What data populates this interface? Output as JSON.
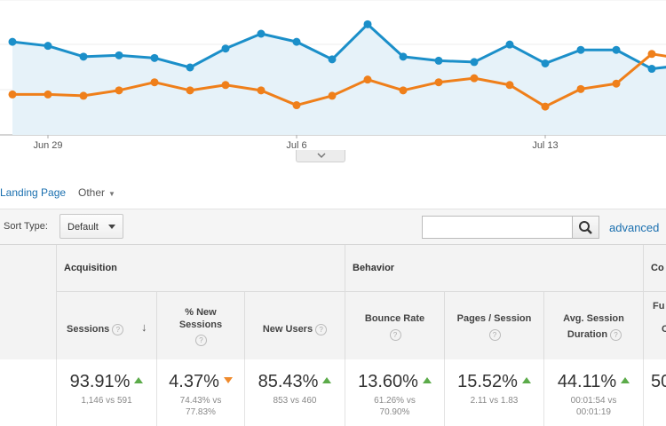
{
  "chart_data": {
    "type": "line",
    "x_ticks": [
      "Jun 29",
      "Jul 6",
      "Jul 13"
    ],
    "series": [
      {
        "color": "#1b8fc9",
        "values": [
          69,
          66,
          58,
          59,
          57,
          50,
          64,
          75,
          69,
          56,
          82,
          58,
          55,
          54,
          67,
          53,
          63,
          63,
          49,
          52,
          47
        ]
      },
      {
        "color": "#ef7f1a",
        "values": [
          30,
          30,
          29,
          33,
          39,
          33,
          37,
          33,
          22,
          29,
          41,
          33,
          39,
          42,
          37,
          21,
          34,
          38,
          60,
          56,
          52
        ]
      }
    ],
    "ylim": [
      0,
      100
    ]
  },
  "tabs": {
    "landing_page": "Landing Page",
    "other": "Other"
  },
  "sort": {
    "label": "Sort Type:",
    "value": "Default"
  },
  "search": {
    "value": "",
    "advanced": "advanced"
  },
  "groups": {
    "acquisition": "Acquisition",
    "behavior": "Behavior",
    "conversions": "Co"
  },
  "columns": {
    "sessions": "Sessions",
    "new_sessions_1": "% New",
    "new_sessions_2": "Sessions",
    "new_users": "New Users",
    "bounce_rate": "Bounce Rate",
    "pages_session": "Pages / Session",
    "avg_duration_1": "Avg. Session",
    "avg_duration_2": "Duration",
    "conv_1": "Fu",
    "conv_2": "C"
  },
  "metrics": {
    "sessions": {
      "pct": "93.91%",
      "cmp1": "1,146 vs 591",
      "cmp2": ""
    },
    "new_sessions": {
      "pct": "4.37%",
      "cmp1": "74.43% vs",
      "cmp2": "77.83%"
    },
    "new_users": {
      "pct": "85.43%",
      "cmp1": "853 vs 460",
      "cmp2": ""
    },
    "bounce_rate": {
      "pct": "13.60%",
      "cmp1": "61.26% vs",
      "cmp2": "70.90%"
    },
    "pages_session": {
      "pct": "15.52%",
      "cmp1": "2.11 vs 1.83",
      "cmp2": ""
    },
    "avg_duration": {
      "pct": "44.11%",
      "cmp1": "00:01:54 vs",
      "cmp2": "00:01:19"
    },
    "conv": {
      "pct": "50"
    }
  },
  "colors": {
    "up": "#5cab4a",
    "down": "#ef8a2c",
    "link": "#1a6faf"
  }
}
